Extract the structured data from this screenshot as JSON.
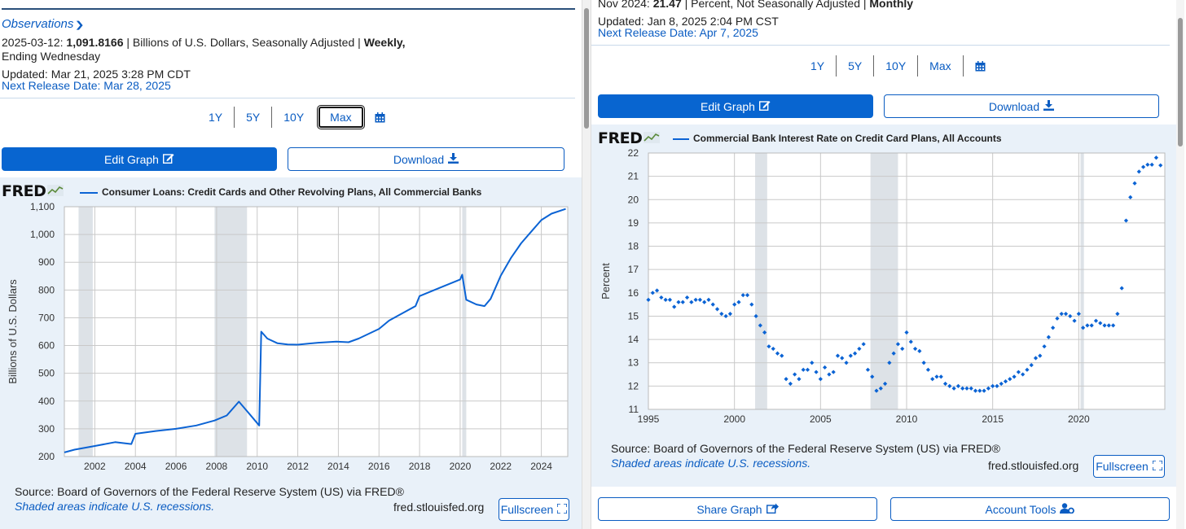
{
  "left": {
    "observations_label": "Observations",
    "obs_date": "2025-03-12:",
    "obs_value": "1,091.8166",
    "obs_units": " | Billions of U.S. Dollars, Seasonally Adjusted | ",
    "obs_freq_1": "Weekly,",
    "obs_freq_2": "Ending Wednesday",
    "updated_label": "Updated: ",
    "updated_value": "Mar 21, 2025 3:28 PM CDT",
    "next_release": "Next Release Date: Mar 28, 2025",
    "ranges": [
      "1Y",
      "5Y",
      "10Y",
      "Max"
    ],
    "edit_graph": "Edit Graph",
    "download": "Download",
    "fred_logo": "FRED",
    "series_title": "Consumer Loans: Credit Cards and Other Revolving Plans, All Commercial Banks",
    "source": "Source: Board of Governors of the Federal Reserve System (US) via FRED®",
    "shaded": "Shaded areas indicate U.S. recessions.",
    "fred_url": "fred.stlouisfed.org",
    "fullscreen": "Fullscreen"
  },
  "right": {
    "obs_date": "Nov 2024:",
    "obs_value": "21.47",
    "obs_units": " | Percent, Not Seasonally Adjusted | ",
    "obs_freq": "Monthly",
    "updated_label": "Updated: ",
    "updated_value": "Jan 8, 2025 2:04 PM CST",
    "next_release": "Next Release Date: Apr 7, 2025",
    "ranges": [
      "1Y",
      "5Y",
      "10Y",
      "Max"
    ],
    "edit_graph": "Edit Graph",
    "download": "Download",
    "fred_logo": "FRED",
    "series_title": "Commercial Bank Interest Rate on Credit Card Plans, All Accounts",
    "source": "Source: Board of Governors of the Federal Reserve System (US) via FRED®",
    "shaded": "Shaded areas indicate U.S. recessions.",
    "fred_url": "fred.stlouisfed.org",
    "fullscreen": "Fullscreen",
    "share_graph": "Share Graph",
    "account_tools": "Account Tools"
  },
  "chart_data": [
    {
      "type": "line",
      "title": "Consumer Loans: Credit Cards and Other Revolving Plans, All Commercial Banks",
      "ylabel": "Billions of U.S. Dollars",
      "xlim": [
        2000.5,
        2025.3
      ],
      "ylim": [
        200,
        1100
      ],
      "x_ticks": [
        "2002",
        "2004",
        "2006",
        "2008",
        "2010",
        "2012",
        "2014",
        "2016",
        "2018",
        "2020",
        "2022",
        "2024"
      ],
      "y_ticks": [
        "200",
        "300",
        "400",
        "500",
        "600",
        "700",
        "800",
        "900",
        "1,000",
        "1,100"
      ],
      "recessions": [
        [
          2001.2,
          2001.9
        ],
        [
          2007.9,
          2009.5
        ],
        [
          2020.1,
          2020.3
        ]
      ],
      "series": [
        {
          "x": [
            2000.5,
            2001.0,
            2002.0,
            2003.0,
            2003.8,
            2004.0,
            2005.0,
            2006.0,
            2007.0,
            2007.9,
            2008.5,
            2009.1,
            2009.6,
            2010.1,
            2010.2,
            2010.5,
            2011.0,
            2011.5,
            2012.0,
            2013.0,
            2013.9,
            2014.5,
            2015.0,
            2016.0,
            2016.5,
            2017.0,
            2017.8,
            2018.0,
            2019.0,
            2020.0,
            2020.1,
            2020.3,
            2020.8,
            2021.2,
            2021.5,
            2022.0,
            2022.5,
            2023.0,
            2023.5,
            2024.0,
            2024.5,
            2025.2
          ],
          "y": [
            215,
            225,
            238,
            252,
            245,
            282,
            292,
            300,
            312,
            330,
            348,
            398,
            355,
            312,
            650,
            625,
            608,
            604,
            603,
            610,
            614,
            612,
            625,
            660,
            690,
            710,
            742,
            778,
            808,
            838,
            855,
            765,
            748,
            742,
            768,
            852,
            915,
            968,
            1010,
            1052,
            1075,
            1092
          ]
        }
      ]
    },
    {
      "type": "scatter",
      "title": "Commercial Bank Interest Rate on Credit Card Plans, All Accounts",
      "ylabel": "Percent",
      "xlim": [
        1995,
        2025
      ],
      "ylim": [
        11,
        22
      ],
      "x_ticks": [
        "1995",
        "2000",
        "2005",
        "2010",
        "2015",
        "2020"
      ],
      "y_ticks": [
        "11",
        "12",
        "13",
        "14",
        "15",
        "16",
        "17",
        "18",
        "19",
        "20",
        "21",
        "22"
      ],
      "recessions": [
        [
          2001.2,
          2001.9
        ],
        [
          2007.9,
          2009.5
        ],
        [
          2020.1,
          2020.3
        ]
      ],
      "series": [
        {
          "x": [
            1995.0,
            1995.25,
            1995.5,
            1995.75,
            1996.0,
            1996.25,
            1996.5,
            1996.75,
            1997.0,
            1997.25,
            1997.5,
            1997.75,
            1998.0,
            1998.25,
            1998.5,
            1998.75,
            1999.0,
            1999.25,
            1999.5,
            1999.75,
            2000.0,
            2000.25,
            2000.5,
            2000.75,
            2001.0,
            2001.25,
            2001.5,
            2001.75,
            2002.0,
            2002.25,
            2002.5,
            2002.75,
            2003.0,
            2003.25,
            2003.5,
            2003.75,
            2004.0,
            2004.25,
            2004.5,
            2004.75,
            2005.0,
            2005.25,
            2005.5,
            2005.75,
            2006.0,
            2006.25,
            2006.5,
            2006.75,
            2007.0,
            2007.25,
            2007.5,
            2007.75,
            2008.0,
            2008.25,
            2008.5,
            2008.75,
            2009.0,
            2009.25,
            2009.5,
            2009.75,
            2010.0,
            2010.25,
            2010.5,
            2010.75,
            2011.0,
            2011.25,
            2011.5,
            2011.75,
            2012.0,
            2012.25,
            2012.5,
            2012.75,
            2013.0,
            2013.25,
            2013.5,
            2013.75,
            2014.0,
            2014.25,
            2014.5,
            2014.75,
            2015.0,
            2015.25,
            2015.5,
            2015.75,
            2016.0,
            2016.25,
            2016.5,
            2016.75,
            2017.0,
            2017.25,
            2017.5,
            2017.75,
            2018.0,
            2018.25,
            2018.5,
            2018.75,
            2019.0,
            2019.25,
            2019.5,
            2019.75,
            2020.0,
            2020.25,
            2020.5,
            2020.75,
            2021.0,
            2021.25,
            2021.5,
            2021.75,
            2022.0,
            2022.25,
            2022.5,
            2022.75,
            2023.0,
            2023.25,
            2023.5,
            2023.75,
            2024.0,
            2024.25,
            2024.5,
            2024.75
          ],
          "y": [
            15.7,
            16.0,
            16.1,
            15.8,
            15.7,
            15.7,
            15.4,
            15.6,
            15.6,
            15.8,
            15.6,
            15.7,
            15.7,
            15.6,
            15.7,
            15.5,
            15.3,
            15.1,
            15.0,
            15.1,
            15.5,
            15.6,
            15.9,
            15.9,
            15.5,
            15.0,
            14.6,
            14.3,
            13.7,
            13.6,
            13.4,
            13.3,
            12.3,
            12.1,
            12.5,
            12.3,
            12.7,
            12.7,
            13.0,
            12.6,
            12.3,
            12.8,
            12.5,
            12.6,
            13.3,
            13.2,
            13.0,
            13.3,
            13.4,
            13.6,
            13.8,
            12.7,
            12.4,
            11.8,
            11.9,
            12.1,
            13.0,
            13.4,
            13.8,
            13.6,
            14.3,
            13.9,
            13.6,
            13.5,
            13.0,
            12.7,
            12.3,
            12.4,
            12.4,
            12.1,
            12.0,
            11.9,
            12.0,
            11.9,
            11.9,
            11.9,
            11.8,
            11.8,
            11.8,
            11.9,
            12.0,
            12.0,
            12.1,
            12.2,
            12.3,
            12.4,
            12.6,
            12.5,
            12.7,
            12.9,
            13.2,
            13.3,
            13.7,
            14.1,
            14.5,
            14.9,
            15.1,
            15.1,
            15.0,
            14.8,
            15.1,
            14.5,
            14.6,
            14.6,
            14.8,
            14.7,
            14.6,
            14.6,
            14.6,
            15.1,
            16.2,
            19.1,
            20.1,
            20.7,
            21.2,
            21.4,
            21.5,
            21.5,
            21.8,
            21.47
          ]
        }
      ]
    }
  ]
}
